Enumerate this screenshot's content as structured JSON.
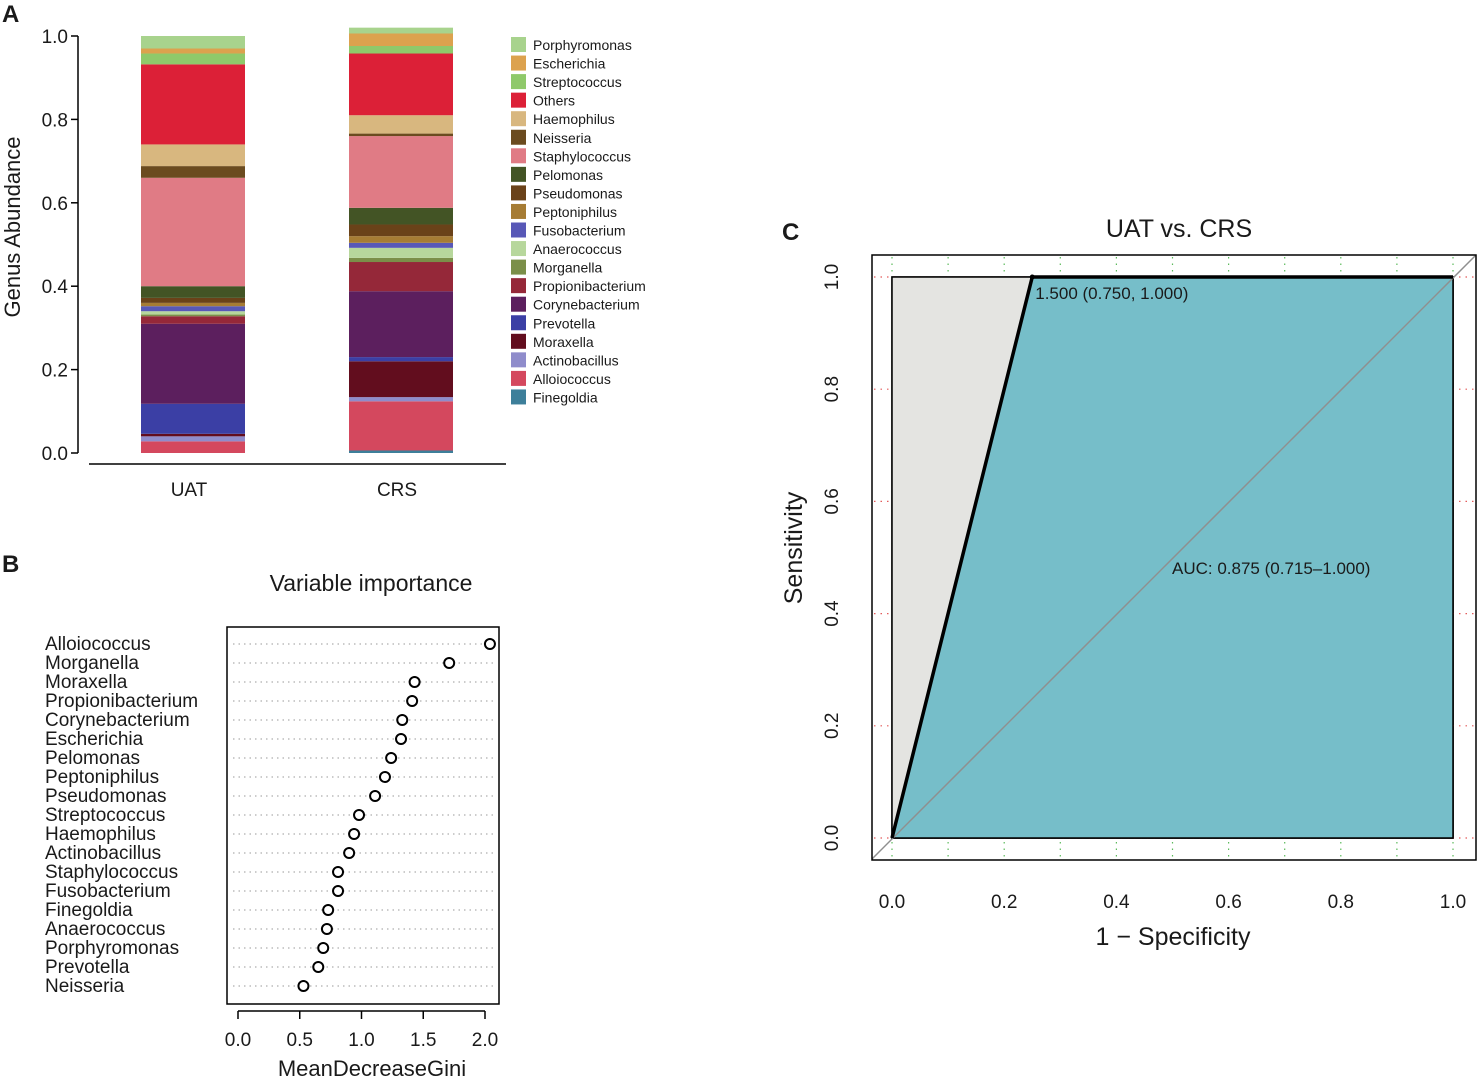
{
  "panels": {
    "a": "A",
    "b": "B",
    "c": "C"
  },
  "chart_data": [
    {
      "type": "bar",
      "subtype": "stacked",
      "panel": "A",
      "ylabel": "Genus Abundance",
      "ylim": [
        0,
        1
      ],
      "yticks": [
        "0.0",
        "0.2",
        "0.4",
        "0.6",
        "0.8",
        "1.0"
      ],
      "categories": [
        "UAT",
        "CRS"
      ],
      "legend_position": "right",
      "series": [
        {
          "name": "Finegoldia",
          "color": "#3d7f9a",
          "values": [
            0.0,
            0.006
          ]
        },
        {
          "name": "Alloiococcus",
          "color": "#d4485e",
          "values": [
            0.028,
            0.118
          ]
        },
        {
          "name": "Actinobacillus",
          "color": "#8f8ccb",
          "values": [
            0.012,
            0.01
          ]
        },
        {
          "name": "Moraxella",
          "color": "#620d1e",
          "values": [
            0.006,
            0.086
          ]
        },
        {
          "name": "Prevotella",
          "color": "#3b3fa5",
          "values": [
            0.072,
            0.01
          ]
        },
        {
          "name": "Corynebacterium",
          "color": "#5c1f5e",
          "values": [
            0.192,
            0.158
          ]
        },
        {
          "name": "Propionibacterium",
          "color": "#952839",
          "values": [
            0.018,
            0.07
          ]
        },
        {
          "name": "Morganella",
          "color": "#7b8f49",
          "values": [
            0.004,
            0.01
          ]
        },
        {
          "name": "Anaerococcus",
          "color": "#b7d79c",
          "values": [
            0.008,
            0.024
          ]
        },
        {
          "name": "Fusobacterium",
          "color": "#5858b7",
          "values": [
            0.012,
            0.012
          ]
        },
        {
          "name": "Peptoniphilus",
          "color": "#a67c34",
          "values": [
            0.008,
            0.016
          ]
        },
        {
          "name": "Pseudomonas",
          "color": "#6a4219",
          "values": [
            0.012,
            0.028
          ]
        },
        {
          "name": "Pelomonas",
          "color": "#435425",
          "values": [
            0.028,
            0.04
          ]
        },
        {
          "name": "Staphylococcus",
          "color": "#e07b85",
          "values": [
            0.26,
            0.172
          ]
        },
        {
          "name": "Neisseria",
          "color": "#6b4b1f",
          "values": [
            0.028,
            0.006
          ]
        },
        {
          "name": "Haemophilus",
          "color": "#d8b77f",
          "values": [
            0.052,
            0.044
          ]
        },
        {
          "name": "Others",
          "color": "#dc2037",
          "values": [
            0.192,
            0.148
          ]
        },
        {
          "name": "Streptococcus",
          "color": "#8fc96a",
          "values": [
            0.026,
            0.018
          ]
        },
        {
          "name": "Escherichia",
          "color": "#dca24e",
          "values": [
            0.012,
            0.03
          ]
        },
        {
          "name": "Porphyromonas",
          "color": "#a8d38d",
          "values": [
            0.03,
            0.014
          ]
        }
      ],
      "legend_order": [
        "Porphyromonas",
        "Escherichia",
        "Streptococcus",
        "Others",
        "Haemophilus",
        "Neisseria",
        "Staphylococcus",
        "Pelomonas",
        "Pseudomonas",
        "Peptoniphilus",
        "Fusobacterium",
        "Anaerococcus",
        "Morganella",
        "Propionibacterium",
        "Corynebacterium",
        "Prevotella",
        "Moraxella",
        "Actinobacillus",
        "Alloiococcus",
        "Finegoldia"
      ]
    },
    {
      "type": "scatter",
      "subtype": "dotchart",
      "panel": "B",
      "title": "Variable importance",
      "xlabel": "MeanDecreaseGini",
      "xlim": [
        0,
        2.1
      ],
      "xticks": [
        "0.0",
        "0.5",
        "1.0",
        "1.5",
        "2.0"
      ],
      "categories": [
        "Alloiococcus",
        "Morganella",
        "Moraxella",
        "Propionibacterium",
        "Corynebacterium",
        "Escherichia",
        "Pelomonas",
        "Peptoniphilus",
        "Pseudomonas",
        "Streptococcus",
        "Haemophilus",
        "Actinobacillus",
        "Staphylococcus",
        "Fusobacterium",
        "Finegoldia",
        "Anaerococcus",
        "Porphyromonas",
        "Prevotella",
        "Neisseria"
      ],
      "values": [
        2.04,
        1.71,
        1.43,
        1.41,
        1.33,
        1.32,
        1.24,
        1.19,
        1.11,
        0.98,
        0.94,
        0.9,
        0.81,
        0.81,
        0.73,
        0.72,
        0.69,
        0.65,
        0.53
      ]
    },
    {
      "type": "line",
      "subtype": "roc",
      "panel": "C",
      "title": "UAT vs. CRS",
      "xlabel": "1 − Specificity",
      "ylabel": "Sensitivity",
      "xlim": [
        0,
        1
      ],
      "ylim": [
        0,
        1
      ],
      "xticks": [
        "0.0",
        "0.2",
        "0.4",
        "0.6",
        "0.8",
        "1.0"
      ],
      "yticks": [
        "0.0",
        "0.2",
        "0.4",
        "0.6",
        "0.8",
        "1.0"
      ],
      "series": [
        {
          "name": "ROC",
          "x": [
            0,
            0.25,
            1.0
          ],
          "y": [
            0,
            1.0,
            1.0
          ]
        },
        {
          "name": "chance",
          "x": [
            0,
            1
          ],
          "y": [
            0,
            1
          ]
        }
      ],
      "best_threshold": {
        "x": 0.25,
        "y": 1.0,
        "label": "1.500 (0.750, 1.000)"
      },
      "auc_label": "AUC: 0.875 (0.715–1.000)",
      "colors": {
        "auc_fill": "#76bec9",
        "ci_fill": "#e4e4e1"
      }
    }
  ]
}
